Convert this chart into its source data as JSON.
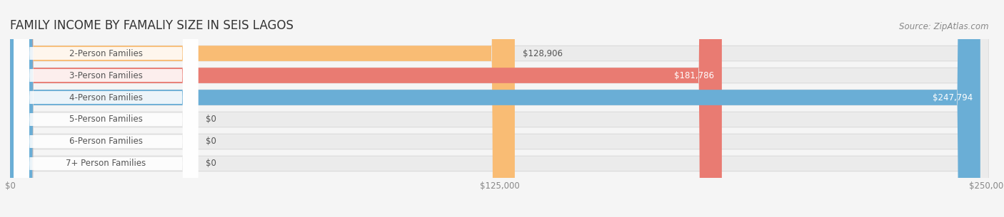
{
  "title": "FAMILY INCOME BY FAMALIY SIZE IN SEIS LAGOS",
  "source": "Source: ZipAtlas.com",
  "categories": [
    "2-Person Families",
    "3-Person Families",
    "4-Person Families",
    "5-Person Families",
    "6-Person Families",
    "7+ Person Families"
  ],
  "values": [
    128906,
    181786,
    247794,
    0,
    0,
    0
  ],
  "bar_colors": [
    "#f9bc74",
    "#e97b72",
    "#6aaed6",
    "#c9a0c8",
    "#6ec4b8",
    "#aab4e0"
  ],
  "xlim": [
    0,
    250000
  ],
  "xtick_labels": [
    "$0",
    "$125,000",
    "$250,000"
  ],
  "background_color": "#f5f5f5",
  "bar_background_color": "#ebebeb",
  "title_fontsize": 12,
  "label_fontsize": 8.5,
  "value_fontsize": 8.5,
  "source_fontsize": 8.5,
  "bar_height": 0.7
}
